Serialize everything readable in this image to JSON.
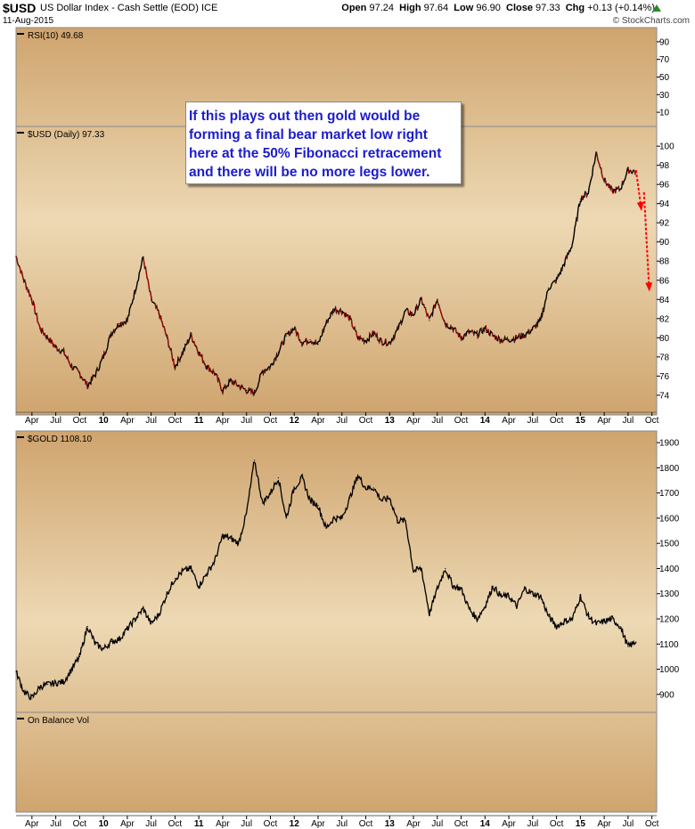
{
  "header": {
    "symbol": "$USD",
    "description": "US Dollar Index - Cash Settle (EOD)",
    "exchange": "ICE",
    "date": "11-Aug-2015",
    "open_label": "Open",
    "open": "97.24",
    "high_label": "High",
    "high": "97.64",
    "low_label": "Low",
    "low": "96.90",
    "close_label": "Close",
    "close": "97.33",
    "chg_label": "Chg",
    "chg": "+0.13 (+0.14%)",
    "brand": "© StockCharts.com"
  },
  "colors": {
    "panel_bg": "#EDD9B4",
    "price_line": "#000000",
    "down_tick": "#cc0000",
    "projection_arrow": "#ff0000",
    "callout_text": "#1c1ccc",
    "up_arrow": "#2a8a2a"
  },
  "callout": {
    "lines": [
      "If this plays out then gold would be",
      "forming a final bear market low right",
      "here at the 50% Fibonacci retracement",
      "and there will be no more legs lower."
    ]
  },
  "x_axis": {
    "labels": [
      "Apr",
      "Jul",
      "Oct",
      "10",
      "Apr",
      "Jul",
      "Oct",
      "11",
      "Apr",
      "Jul",
      "Oct",
      "12",
      "Apr",
      "Jul",
      "Oct",
      "13",
      "Apr",
      "Jul",
      "Oct",
      "14",
      "Apr",
      "Jul",
      "Oct",
      "15",
      "Apr",
      "Jul",
      "Oct"
    ]
  },
  "chart_data": [
    {
      "type": "line",
      "panel": "rsi",
      "label": "RSI(10) 49.68",
      "y_ticks": [
        10,
        30,
        50,
        70,
        90
      ],
      "ylim": [
        0,
        100
      ],
      "series": [
        {
          "name": "RSI(10)",
          "last": 49.68
        }
      ]
    },
    {
      "type": "line",
      "panel": "usd",
      "label": "$USD (Daily) 97.33",
      "y_ticks": [
        74,
        76,
        78,
        80,
        82,
        84,
        86,
        88,
        90,
        92,
        94,
        96,
        98,
        100
      ],
      "ylim": [
        72.5,
        101.5
      ],
      "x_range": [
        "2009-02",
        "2015-10"
      ],
      "series": [
        {
          "name": "$USD",
          "x": [
            "2009-02",
            "2009-03",
            "2009-04",
            "2009-05",
            "2009-06",
            "2009-07",
            "2009-08",
            "2009-09",
            "2009-10",
            "2009-11",
            "2009-12",
            "2010-01",
            "2010-02",
            "2010-03",
            "2010-04",
            "2010-05",
            "2010-06",
            "2010-07",
            "2010-08",
            "2010-09",
            "2010-10",
            "2010-11",
            "2010-12",
            "2011-01",
            "2011-02",
            "2011-03",
            "2011-04",
            "2011-05",
            "2011-06",
            "2011-07",
            "2011-08",
            "2011-09",
            "2011-10",
            "2011-11",
            "2011-12",
            "2012-01",
            "2012-02",
            "2012-03",
            "2012-04",
            "2012-05",
            "2012-06",
            "2012-07",
            "2012-08",
            "2012-09",
            "2012-10",
            "2012-11",
            "2012-12",
            "2013-01",
            "2013-02",
            "2013-03",
            "2013-04",
            "2013-05",
            "2013-06",
            "2013-07",
            "2013-08",
            "2013-09",
            "2013-10",
            "2013-11",
            "2013-12",
            "2014-01",
            "2014-02",
            "2014-03",
            "2014-04",
            "2014-05",
            "2014-06",
            "2014-07",
            "2014-08",
            "2014-09",
            "2014-10",
            "2014-11",
            "2014-12",
            "2015-01",
            "2015-02",
            "2015-03",
            "2015-04",
            "2015-05",
            "2015-06",
            "2015-07",
            "2015-08"
          ],
          "values": [
            88.5,
            86,
            84,
            81,
            80,
            79,
            78.5,
            77,
            76.3,
            75,
            76.2,
            78,
            80.5,
            81.5,
            81.8,
            85,
            88.4,
            84,
            82.5,
            80,
            77,
            78.5,
            80.3,
            78.5,
            77,
            76.3,
            74.5,
            75.5,
            75,
            74.5,
            74.2,
            76.5,
            77,
            78.5,
            80.2,
            81,
            79.5,
            79.8,
            79.3,
            81.5,
            83,
            82.8,
            82,
            80,
            79.7,
            80.5,
            79.6,
            79.5,
            80.8,
            82.8,
            82.4,
            84,
            81.8,
            84,
            81.5,
            81,
            80,
            80.6,
            80.3,
            81,
            80.2,
            79.8,
            79.8,
            80,
            80.3,
            80.9,
            81.8,
            85.2,
            86,
            87.8,
            89.8,
            94.5,
            95.2,
            99.3,
            96.5,
            95.3,
            95.5,
            97.5,
            97.33
          ]
        }
      ],
      "projection": [
        {
          "from": "2015-08",
          "to": "2015-09",
          "values": [
            97.5,
            93.4
          ]
        },
        {
          "from": "2015-09",
          "to": "2015-10",
          "values": [
            95.2,
            85
          ]
        }
      ]
    },
    {
      "type": "line",
      "panel": "gold",
      "label": "$GOLD 1108.10",
      "y_ticks": [
        900,
        1000,
        1100,
        1200,
        1300,
        1400,
        1500,
        1600,
        1700,
        1800,
        1900
      ],
      "ylim": [
        850,
        1925
      ],
      "x_range": [
        "2009-02",
        "2015-10"
      ],
      "series": [
        {
          "name": "$GOLD",
          "x": [
            "2009-02",
            "2009-03",
            "2009-04",
            "2009-05",
            "2009-06",
            "2009-07",
            "2009-08",
            "2009-09",
            "2009-10",
            "2009-11",
            "2009-12",
            "2010-01",
            "2010-02",
            "2010-03",
            "2010-04",
            "2010-05",
            "2010-06",
            "2010-07",
            "2010-08",
            "2010-09",
            "2010-10",
            "2010-11",
            "2010-12",
            "2011-01",
            "2011-02",
            "2011-03",
            "2011-04",
            "2011-05",
            "2011-06",
            "2011-07",
            "2011-08",
            "2011-09",
            "2011-10",
            "2011-11",
            "2011-12",
            "2012-01",
            "2012-02",
            "2012-03",
            "2012-04",
            "2012-05",
            "2012-06",
            "2012-07",
            "2012-08",
            "2012-09",
            "2012-10",
            "2012-11",
            "2012-12",
            "2013-01",
            "2013-02",
            "2013-03",
            "2013-04",
            "2013-05",
            "2013-06",
            "2013-07",
            "2013-08",
            "2013-09",
            "2013-10",
            "2013-11",
            "2013-12",
            "2014-01",
            "2014-02",
            "2014-03",
            "2014-04",
            "2014-05",
            "2014-06",
            "2014-07",
            "2014-08",
            "2014-09",
            "2014-10",
            "2014-11",
            "2014-12",
            "2015-01",
            "2015-02",
            "2015-03",
            "2015-04",
            "2015-05",
            "2015-06",
            "2015-07",
            "2015-08"
          ],
          "values": [
            990,
            910,
            885,
            930,
            940,
            945,
            950,
            1000,
            1050,
            1170,
            1100,
            1080,
            1110,
            1120,
            1160,
            1200,
            1240,
            1180,
            1220,
            1300,
            1360,
            1390,
            1400,
            1330,
            1380,
            1430,
            1530,
            1520,
            1500,
            1620,
            1830,
            1660,
            1700,
            1760,
            1600,
            1720,
            1760,
            1670,
            1650,
            1560,
            1600,
            1600,
            1680,
            1770,
            1720,
            1720,
            1670,
            1680,
            1590,
            1590,
            1390,
            1400,
            1220,
            1320,
            1400,
            1330,
            1320,
            1240,
            1200,
            1250,
            1330,
            1290,
            1290,
            1250,
            1320,
            1300,
            1290,
            1210,
            1170,
            1190,
            1200,
            1290,
            1210,
            1180,
            1190,
            1200,
            1170,
            1090,
            1108
          ]
        }
      ]
    },
    {
      "type": "line",
      "panel": "obv",
      "label": "On Balance Vol",
      "series": []
    }
  ]
}
